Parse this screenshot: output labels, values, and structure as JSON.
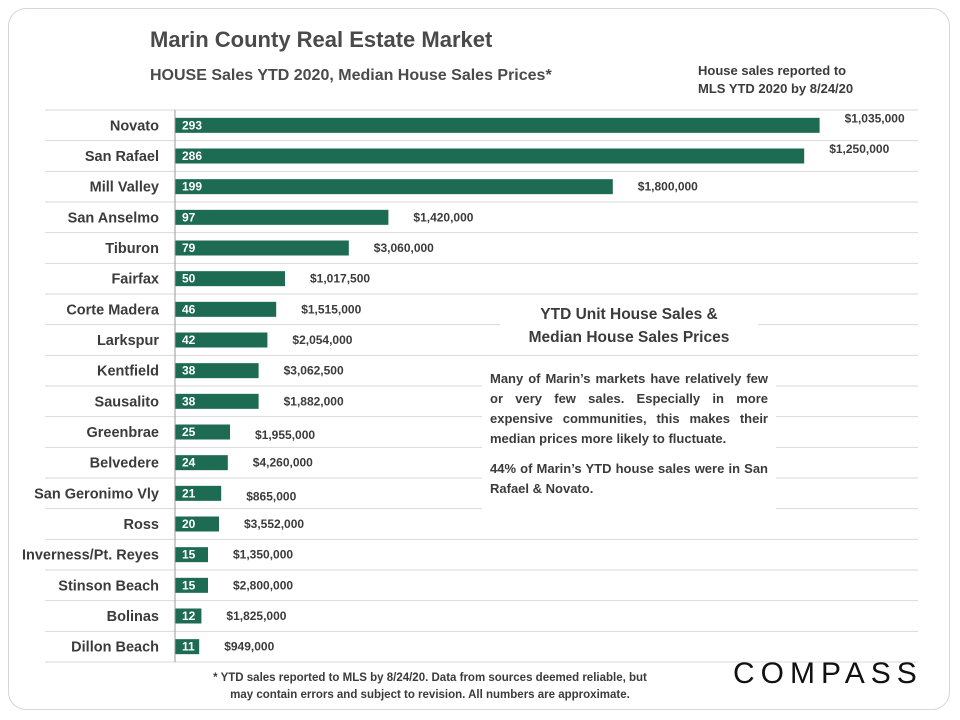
{
  "header": {
    "title": "Marin County Real Estate Market",
    "subtitle": "HOUSE Sales YTD 2020, Median House Sales Prices*",
    "note_line1": "House sales reported to",
    "note_line2": "MLS YTD 2020 by 8/24/20"
  },
  "annotation": {
    "title_line1": "YTD Unit House Sales &",
    "title_line2": "Median House Sales Prices",
    "para1": "Many of Marin’s markets have relatively few or very few sales. Especially in more expensive communities, this makes their median prices more likely to fluctuate.",
    "para2": "44% of Marin’s YTD house sales were in San Rafael & Novato."
  },
  "footer": {
    "line1": "* YTD sales reported to MLS by 8/24/20. Data from sources deemed reliable, but",
    "line2": "may contain errors and subject to revision. All numbers are approximate.",
    "logo": "COMPASS"
  },
  "colors": {
    "bar": "#1d6b52",
    "grid": "#d9d9d9",
    "axis": "#9a9a9a"
  },
  "chart_data": {
    "type": "bar",
    "orientation": "horizontal",
    "title": "HOUSE Sales YTD 2020, Median House Sales Prices*",
    "xlim": [
      0,
      300
    ],
    "grid": true,
    "categories": [
      "Novato",
      "San Rafael",
      "Mill Valley",
      "San Anselmo",
      "Tiburon",
      "Fairfax",
      "Corte Madera",
      "Larkspur",
      "Kentfield",
      "Sausalito",
      "Greenbrae",
      "Belvedere",
      "San Geronimo Vly",
      "Ross",
      "Inverness/Pt. Reyes",
      "Stinson Beach",
      "Bolinas",
      "Dillon Beach"
    ],
    "series": [
      {
        "name": "YTD Unit House Sales",
        "values": [
          293,
          286,
          199,
          97,
          79,
          50,
          46,
          42,
          38,
          38,
          25,
          24,
          21,
          20,
          15,
          15,
          12,
          11
        ]
      }
    ],
    "median_prices": [
      "$1,035,000",
      "$1,250,000",
      "$1,800,000",
      "$1,420,000",
      "$3,060,000",
      "$1,017,500",
      "$1,515,000",
      "$2,054,000",
      "$3,062,500",
      "$1,882,000",
      "$1,955,000",
      "$4,260,000",
      "$865,000",
      "$3,552,000",
      "$1,350,000",
      "$2,800,000",
      "$1,825,000",
      "$949,000"
    ]
  }
}
